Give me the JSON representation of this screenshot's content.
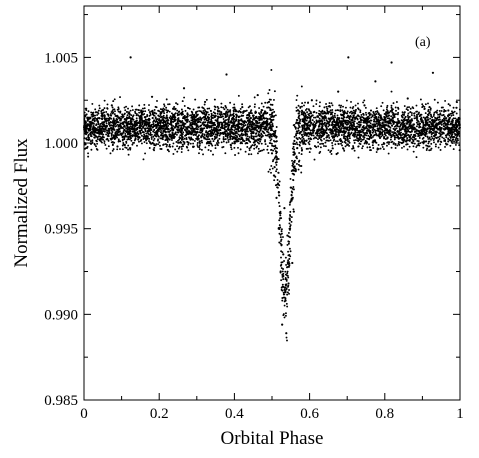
{
  "chart_data": {
    "type": "scatter",
    "xlabel": "Orbital Phase",
    "ylabel": "Normalized Flux",
    "annotation": "(a)",
    "xlim": [
      0,
      1
    ],
    "ylim": [
      0.985,
      1.008
    ],
    "x_ticks": [
      {
        "value": 0,
        "label": "0"
      },
      {
        "value": 0.2,
        "label": "0.2"
      },
      {
        "value": 0.4,
        "label": "0.4"
      },
      {
        "value": 0.6,
        "label": "0.6"
      },
      {
        "value": 0.8,
        "label": "0.8"
      },
      {
        "value": 1,
        "label": "1"
      }
    ],
    "y_ticks": [
      {
        "value": 0.985,
        "label": "0.985"
      },
      {
        "value": 0.99,
        "label": "0.990"
      },
      {
        "value": 0.995,
        "label": "0.995"
      },
      {
        "value": 1.0,
        "label": "1.000"
      },
      {
        "value": 1.005,
        "label": "1.005"
      }
    ],
    "grid": false,
    "series": [
      {
        "points": [
          [
            0.005,
            1.0012
          ],
          [
            0.018,
            1.0005
          ],
          [
            0.032,
            1.0018
          ],
          [
            0.047,
            1.0003
          ],
          [
            0.061,
            1.001
          ],
          [
            0.074,
            1.0022
          ],
          [
            0.089,
            0.9998
          ],
          [
            0.103,
            1.0015
          ],
          [
            0.116,
            1.0008
          ],
          [
            0.124,
            1.005
          ],
          [
            0.138,
            1.0004
          ],
          [
            0.152,
            1.0019
          ],
          [
            0.166,
            1.0011
          ],
          [
            0.181,
            1.0027
          ],
          [
            0.195,
            1.0006
          ],
          [
            0.209,
            1.0014
          ],
          [
            0.223,
            0.9996
          ],
          [
            0.237,
            1.002
          ],
          [
            0.251,
            1.0009
          ],
          [
            0.266,
            1.0032
          ],
          [
            0.279,
            1.0007
          ],
          [
            0.293,
            1.0016
          ],
          [
            0.308,
            1.0001
          ],
          [
            0.322,
            1.0024
          ],
          [
            0.336,
            1.0012
          ],
          [
            0.351,
            1.0005
          ],
          [
            0.365,
            1.0018
          ],
          [
            0.379,
            1.004
          ],
          [
            0.394,
            1.001
          ],
          [
            0.408,
            1.0002
          ],
          [
            0.421,
            1.0021
          ],
          [
            0.436,
            1.0013
          ],
          [
            0.451,
            1.0006
          ],
          [
            0.462,
            1.0028
          ],
          [
            0.474,
            1.0016
          ],
          [
            0.484,
            1.0008
          ],
          [
            0.492,
            1.0024
          ],
          [
            0.5,
            0.9994
          ],
          [
            0.506,
            0.9981
          ],
          [
            0.512,
            0.9968
          ],
          [
            0.518,
            0.995
          ],
          [
            0.523,
            0.9925
          ],
          [
            0.527,
            0.9894
          ],
          [
            0.53,
            0.9935
          ],
          [
            0.533,
            0.9962
          ],
          [
            0.536,
            0.9908
          ],
          [
            0.538,
            0.9889
          ],
          [
            0.541,
            0.9946
          ],
          [
            0.544,
            0.9918
          ],
          [
            0.547,
            0.9956
          ],
          [
            0.55,
            0.9974
          ],
          [
            0.554,
            0.993
          ],
          [
            0.558,
            0.996
          ],
          [
            0.562,
            0.9985
          ],
          [
            0.567,
            0.9997
          ],
          [
            0.574,
            1.0006
          ],
          [
            0.583,
            1.0017
          ],
          [
            0.594,
            1.0009
          ],
          [
            0.606,
            1.0025
          ],
          [
            0.619,
            1.0012
          ],
          [
            0.633,
            1.0004
          ],
          [
            0.647,
            1.002
          ],
          [
            0.661,
            1.0011
          ],
          [
            0.676,
            1.003
          ],
          [
            0.69,
            1.0007
          ],
          [
            0.703,
            1.005
          ],
          [
            0.718,
            1.0015
          ],
          [
            0.732,
            1.0002
          ],
          [
            0.746,
            1.0022
          ],
          [
            0.761,
            1.001
          ],
          [
            0.775,
            1.0036
          ],
          [
            0.789,
            1.0006
          ],
          [
            0.804,
            1.0018
          ],
          [
            0.818,
            1.0047
          ],
          [
            0.832,
            1.0012
          ],
          [
            0.847,
            1.0003
          ],
          [
            0.861,
            1.0026
          ],
          [
            0.876,
            1.0009
          ],
          [
            0.89,
            1.0017
          ],
          [
            0.904,
            1.0001
          ],
          [
            0.919,
            1.0021
          ],
          [
            0.928,
            1.0041
          ],
          [
            0.941,
            1.0011
          ],
          [
            0.955,
            1.0006
          ],
          [
            0.969,
            1.0019
          ],
          [
            0.983,
            1.0008
          ],
          [
            0.996,
            1.0014
          ]
        ]
      }
    ]
  }
}
